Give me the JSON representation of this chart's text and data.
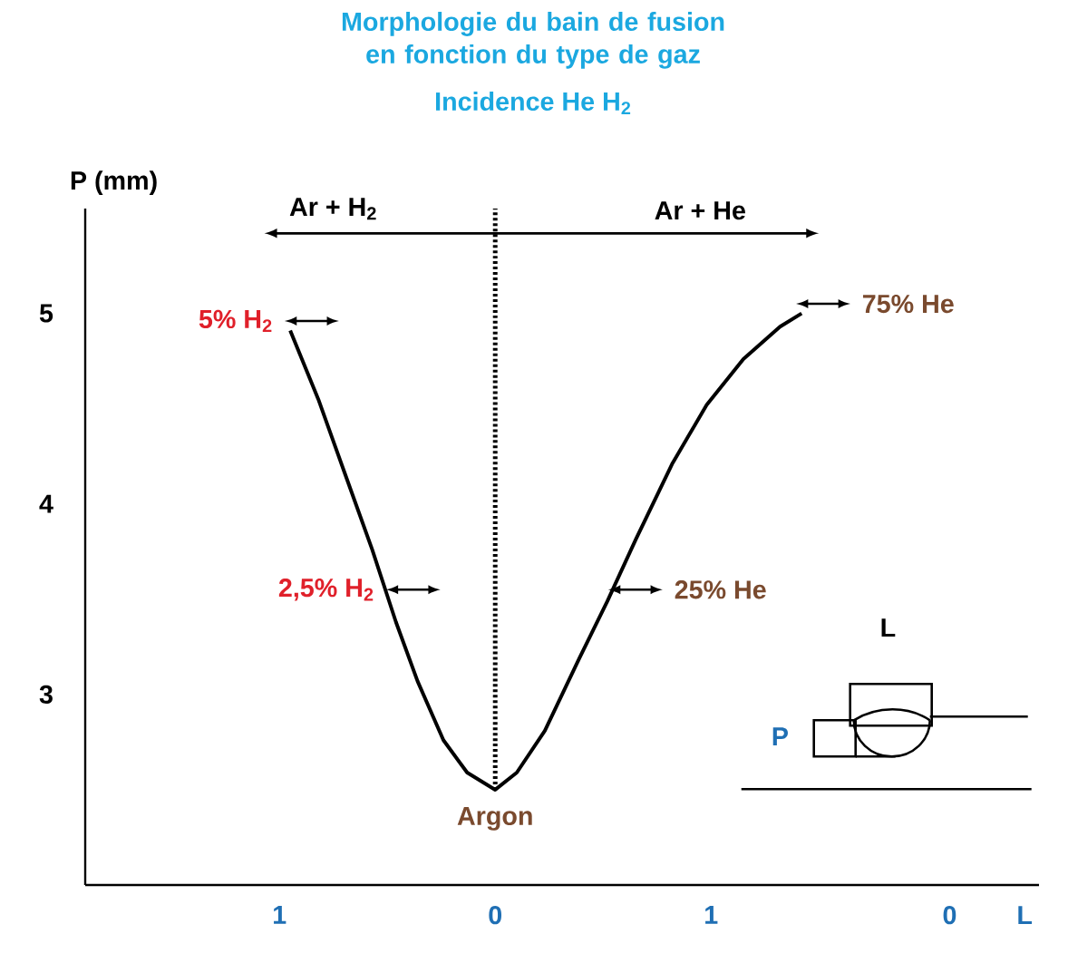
{
  "chart_data": {
    "type": "line",
    "title": "Morphologie du bain de fusion en fonction du type de gaz",
    "subtitle": "Incidence He H$_{2}$",
    "xlabel": "0 L",
    "ylabel": "P (mm)",
    "x": [
      -0.95,
      -0.82,
      -0.7,
      -0.57,
      -0.46,
      -0.36,
      -0.24,
      -0.13,
      0,
      0.1,
      0.23,
      0.39,
      0.52,
      0.65,
      0.82,
      0.98,
      1.15,
      1.32,
      1.42
    ],
    "values": [
      4.91,
      4.55,
      4.17,
      3.76,
      3.38,
      3.07,
      2.76,
      2.59,
      2.5,
      2.59,
      2.81,
      3.19,
      3.49,
      3.81,
      4.21,
      4.52,
      4.76,
      4.93,
      5.0
    ],
    "color": "#000000",
    "xlim": [
      -1.9,
      2.52
    ],
    "ylim": [
      2.0,
      5.55
    ],
    "xticks": [
      {
        "value": -1,
        "label": "1"
      },
      {
        "value": 0,
        "label": "0"
      },
      {
        "value": 1,
        "label": "1"
      }
    ],
    "yticks": [
      3,
      4,
      5
    ],
    "ref_lines": [
      {
        "axis": "x",
        "value": 0,
        "line_style": "dotted"
      }
    ],
    "annotations": [
      "Ar + H$_{2}$",
      "Ar + He",
      {
        "text": "5% H$_{2}$",
        "x": -0.95,
        "y": 4.91
      },
      {
        "text": "2,5% H$_{2}$",
        "x": -0.48,
        "y": 3.5
      },
      {
        "text": "25% He",
        "x": 0.55,
        "y": 3.5
      },
      {
        "text": "75% He",
        "x": 1.42,
        "y": 5.0
      },
      {
        "text": "Argon",
        "x": 0,
        "y": 2.5
      },
      "L",
      "P"
    ]
  }
}
